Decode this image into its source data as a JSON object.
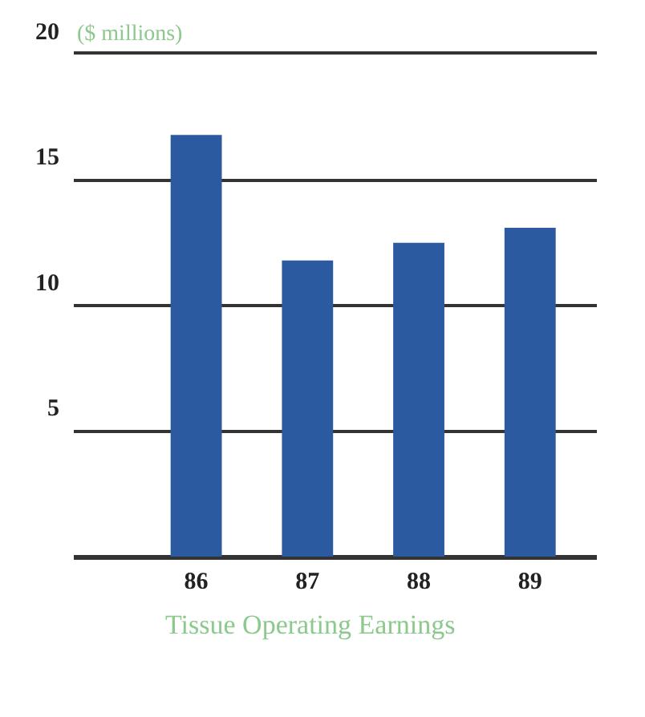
{
  "chart_data": {
    "type": "bar",
    "title": "Tissue Operating Earnings",
    "ylabel": "($ millions)",
    "categories": [
      "86",
      "87",
      "88",
      "89"
    ],
    "values": [
      16.8,
      11.8,
      12.5,
      13.1
    ],
    "color": "#2c5aa0",
    "ylim": [
      0,
      20
    ],
    "yticks": [
      5,
      10,
      15,
      20
    ],
    "grid": "y"
  }
}
